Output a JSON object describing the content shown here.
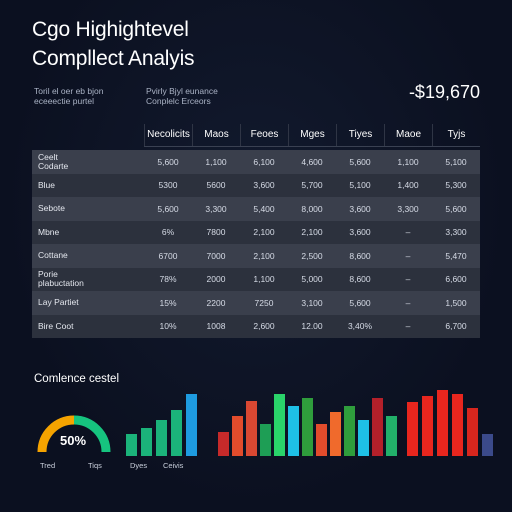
{
  "header": {
    "title_line1": "Cgo Highightevel",
    "title_line2": "Compllect Analyis",
    "sub_left": [
      "Toril el oer eb bjon",
      "eceeectie purtel"
    ],
    "sub_right": [
      "Pvirly Bjyl eunance",
      "Conplelc Erceors"
    ],
    "amount": "-$19,670"
  },
  "table": {
    "columns": [
      "Necolicits",
      "Maos",
      "Feoes",
      "Mges",
      "Tiyes",
      "Maoe",
      "Tyjs"
    ],
    "rows": [
      {
        "label": [
          "Ceelt",
          "Codarte"
        ],
        "cells": [
          "5,600",
          "1,100",
          "6,100",
          "4,600",
          "5,600",
          "1,100",
          "5,100"
        ]
      },
      {
        "label": [
          "Blue"
        ],
        "cells": [
          "5300",
          "5600",
          "3,600",
          "5,700",
          "5,100",
          "1,400",
          "5,300"
        ]
      },
      {
        "label": [
          "Sebote"
        ],
        "cells": [
          "5,600",
          "3,300",
          "5,400",
          "8,000",
          "3,600",
          "3,300",
          "5,600"
        ]
      },
      {
        "label": [
          "Mbne"
        ],
        "cells": [
          "6%",
          "7800",
          "2,100",
          "2,100",
          "3,600",
          "–",
          "3,300"
        ]
      },
      {
        "label": [
          "Cottane"
        ],
        "cells": [
          "6700",
          "7000",
          "2,100",
          "2,500",
          "8,600",
          "–",
          "5,470"
        ]
      },
      {
        "label": [
          "Porie",
          "plabuctation"
        ],
        "cells": [
          "78%",
          "2000",
          "1,100",
          "5,000",
          "8,600",
          "–",
          "6,600"
        ]
      },
      {
        "label": [
          "Lay Partiet"
        ],
        "cells": [
          "15%",
          "2200",
          "7250",
          "3,100",
          "5,600",
          "–",
          "1,500"
        ]
      },
      {
        "label": [
          "Bire Coot"
        ],
        "cells": [
          "10%",
          "1008",
          "2,600",
          "12.00",
          "3,40%",
          "–",
          "6,700"
        ]
      }
    ]
  },
  "dashboard": {
    "legend_title": "Comlence cestel",
    "donut": {
      "percent_label": "50%",
      "label_left": "Tred",
      "label_right": "Tiqs"
    },
    "bars_labels": {
      "left": "Dyes",
      "right": "Ceivis"
    }
  },
  "chart_data": [
    {
      "type": "pie",
      "values": [
        50,
        50
      ],
      "colors": [
        "#f5a300",
        "#16c47f"
      ]
    },
    {
      "type": "bar",
      "values": [
        22,
        28,
        36,
        46,
        62
      ],
      "colors": [
        "#1bb37a",
        "#1bb37a",
        "#1bb37a",
        "#1bb37a",
        "#1e9be0"
      ]
    },
    {
      "type": "bar",
      "values": [
        24,
        40,
        55,
        32,
        62,
        50,
        58,
        32,
        44,
        50,
        36,
        58,
        40
      ],
      "colors": [
        "#c62a2a",
        "#e24c2c",
        "#d94832",
        "#1e9e55",
        "#2ad46a",
        "#1ec0e6",
        "#2f9d3c",
        "#e24c2c",
        "#f06a2c",
        "#2f9d3c",
        "#1ec0e6",
        "#b4202a",
        "#22b06a"
      ]
    },
    {
      "type": "bar",
      "values": [
        54,
        60,
        66,
        62,
        48,
        22
      ],
      "colors": [
        "#e8261e",
        "#e8261e",
        "#e8261e",
        "#e8261e",
        "#d7261e",
        "#3b4a8a"
      ]
    }
  ]
}
